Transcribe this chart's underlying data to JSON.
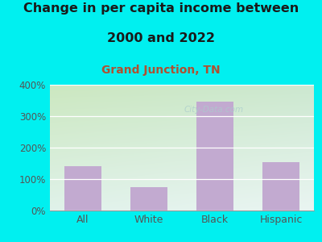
{
  "title_line1": "Change in per capita income between",
  "title_line2": "2000 and 2022",
  "subtitle": "Grand Junction, TN",
  "categories": [
    "All",
    "White",
    "Black",
    "Hispanic"
  ],
  "values": [
    140,
    75,
    345,
    155
  ],
  "bar_color": "#c2aad0",
  "title_fontsize": 11.5,
  "subtitle_fontsize": 10,
  "title_color": "#1a1a1a",
  "subtitle_color": "#b05030",
  "bg_color": "#00f0f0",
  "plot_bg_top_left": "#cce8c0",
  "plot_bg_bottom_right": "#e8f5f0",
  "ylim": [
    0,
    400
  ],
  "yticks": [
    0,
    100,
    200,
    300,
    400
  ],
  "tick_label_color": "#555555",
  "grid_color": "#ccddcc",
  "watermark": "City-Data.com",
  "watermark_color": "#aacccc",
  "watermark_alpha": 0.75
}
